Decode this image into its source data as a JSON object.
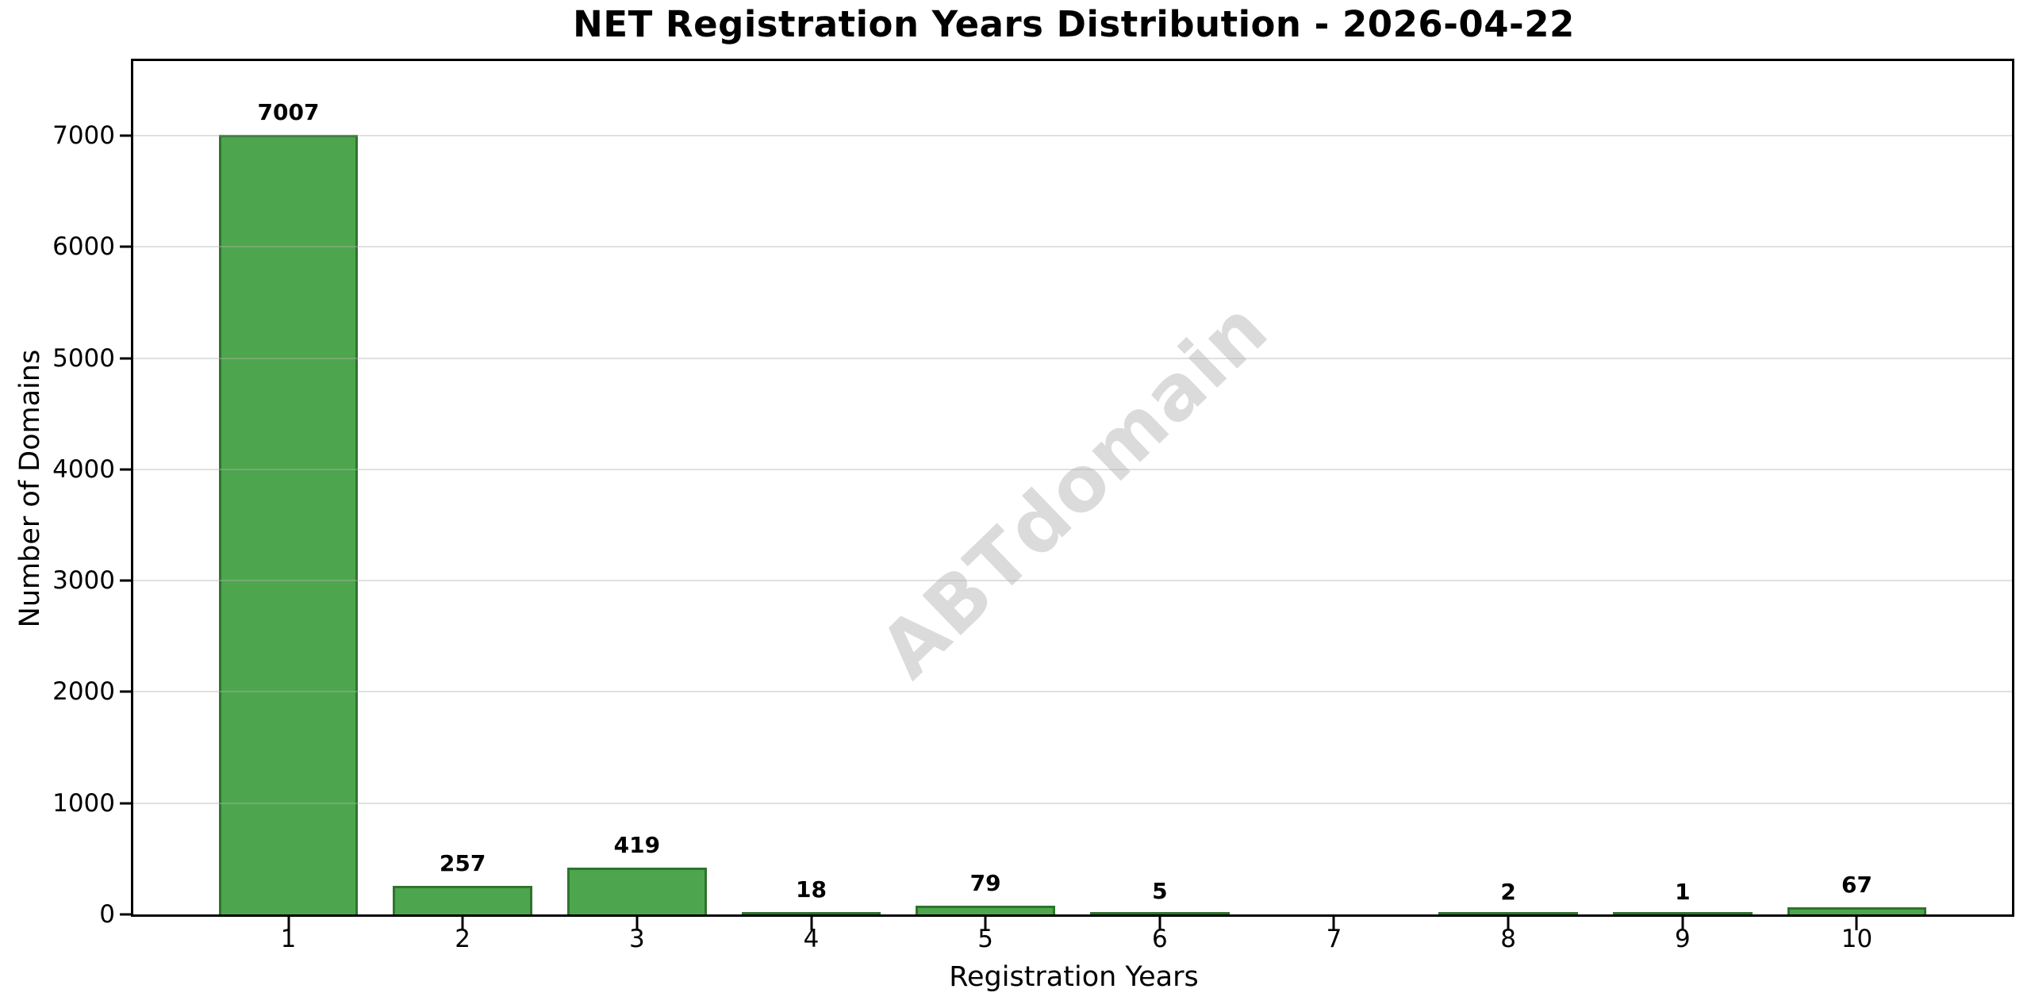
{
  "chart_data": {
    "type": "bar",
    "title": "NET Registration Years Distribution - 2026-04-22",
    "xlabel": "Registration Years",
    "ylabel": "Number of Domains",
    "categories": [
      "1",
      "2",
      "3",
      "4",
      "5",
      "6",
      "7",
      "8",
      "9",
      "10"
    ],
    "values": [
      7007,
      257,
      419,
      18,
      79,
      5,
      0,
      2,
      1,
      67
    ],
    "bar_value_labels": [
      "7007",
      "257",
      "419",
      "18",
      "79",
      "5",
      "",
      "2",
      "1",
      "67"
    ],
    "yticks": [
      0,
      1000,
      2000,
      3000,
      4000,
      5000,
      6000,
      7000
    ],
    "ytick_labels": [
      "0",
      "1000",
      "2000",
      "3000",
      "4000",
      "5000",
      "6000",
      "7000"
    ],
    "ylim": [
      0,
      7670
    ],
    "xlim": [
      0.11,
      10.89
    ],
    "bar_width_units": 0.8,
    "grid": "horizontal",
    "legend": "none",
    "watermark": "ABTdomain",
    "colors": {
      "bar_fill": "#4DA64D",
      "bar_edge": "#2E742E",
      "grid": "rgba(178,178,178,0.4)",
      "watermark": "rgba(0,0,0,0.14)",
      "text": "#000000",
      "background": "#ffffff"
    }
  }
}
